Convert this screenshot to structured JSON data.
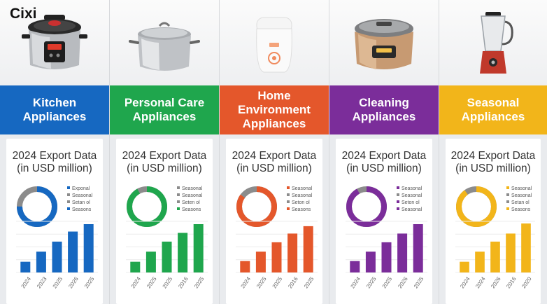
{
  "brand": "Cixi",
  "chart_data": [
    {
      "type": "bar",
      "title": "2024 Export Data (in USD million)",
      "category_label": "Kitchen Appliances",
      "color": "#1668c1",
      "donut": {
        "share": 0.75,
        "accent": "#1668c1",
        "rest": "#8c8c8c"
      },
      "legend": [
        "Exponal",
        "Seasonal",
        "Setan ol",
        "Seasons"
      ],
      "legend_colors": [
        "#1668c1",
        "#8c8c8c",
        "#8c8c8c",
        "#1668c1"
      ],
      "categories": [
        "2024",
        "2023",
        "2025",
        "2026",
        "2025"
      ],
      "values": [
        16,
        31,
        46,
        61,
        72
      ],
      "ylim": [
        0,
        80
      ]
    },
    {
      "type": "bar",
      "title": "2024 Export Data (in USD million)",
      "category_label": "Personal Care Appliances",
      "color": "#1fa64d",
      "donut": {
        "share": 0.92,
        "accent": "#1fa64d",
        "rest": "#8c8c8c"
      },
      "legend": [
        "Seasonal",
        "Seasonal",
        "Seten ol",
        "Seasons"
      ],
      "legend_colors": [
        "#8c8c8c",
        "#8c8c8c",
        "#8c8c8c",
        "#1fa64d"
      ],
      "categories": [
        "2024",
        "2025",
        "2025",
        "2016",
        "2025"
      ],
      "values": [
        16,
        31,
        46,
        59,
        72
      ],
      "ylim": [
        0,
        80
      ]
    },
    {
      "type": "bar",
      "title": "2024 Export Data (in USD million)",
      "category_label": "Home Environment Appliances",
      "color": "#e4572b",
      "donut": {
        "share": 0.85,
        "accent": "#e4572b",
        "rest": "#8c8c8c"
      },
      "legend": [
        "Seasonal",
        "Seasonal",
        "Seton ol",
        "Seasons"
      ],
      "legend_colors": [
        "#e4572b",
        "#8c8c8c",
        "#8c8c8c",
        "#e4572b"
      ],
      "categories": [
        "2024",
        "2025",
        "2025",
        "2016",
        "2025"
      ],
      "values": [
        17,
        31,
        45,
        58,
        69
      ],
      "ylim": [
        0,
        80
      ]
    },
    {
      "type": "bar",
      "title": "2024 Export Data (in USD million)",
      "category_label": "Cleaning Appliances",
      "color": "#7b2d9a",
      "donut": {
        "share": 0.92,
        "accent": "#7b2d9a",
        "rest": "#8c8c8c"
      },
      "legend": [
        "Seasonal",
        "Seasonal",
        "Seton ol",
        "Seasonal"
      ],
      "legend_colors": [
        "#7b2d9a",
        "#8c8c8c",
        "#7b2d9a",
        "#7b2d9a"
      ],
      "categories": [
        "2024",
        "2025",
        "2025",
        "2026",
        "2025"
      ],
      "values": [
        17,
        31,
        45,
        58,
        72
      ],
      "ylim": [
        0,
        80
      ]
    },
    {
      "type": "bar",
      "title": "2024 Export Data (in USD million)",
      "category_label": "Seasonal Appliances",
      "color": "#f2b51a",
      "donut": {
        "share": 0.9,
        "accent": "#f2b51a",
        "rest": "#8c8c8c"
      },
      "legend": [
        "Seasonal",
        "Seasonal",
        "Setan ol",
        "Seasons"
      ],
      "legend_colors": [
        "#f2b51a",
        "#8c8c8c",
        "#8c8c8c",
        "#f2b51a"
      ],
      "categories": [
        "2024",
        "2024",
        "2026",
        "2016",
        "2020"
      ],
      "values": [
        16,
        31,
        46,
        58,
        73
      ],
      "ylim": [
        0,
        80
      ]
    }
  ],
  "columns": [
    {
      "band_line1": "Kitchen",
      "band_line2": "Appliances",
      "band_color": "#1668c1",
      "photo": "pressure-cooker-icon"
    },
    {
      "band_line1": "Personal Care",
      "band_line2": "Appliances",
      "band_color": "#1fa64d",
      "photo": "stock-pot-icon"
    },
    {
      "band_line1": "Home Environment",
      "band_line2": "Appliances",
      "band_color": "#e4572b",
      "photo": "humidifier-icon"
    },
    {
      "band_line1": "Cleaning",
      "band_line2": "Appliances",
      "band_color": "#7b2d9a",
      "photo": "rice-cooker-icon"
    },
    {
      "band_line1": "Seasonal",
      "band_line2": "Appliances",
      "band_color": "#f2b51a",
      "photo": "blender-icon"
    }
  ]
}
